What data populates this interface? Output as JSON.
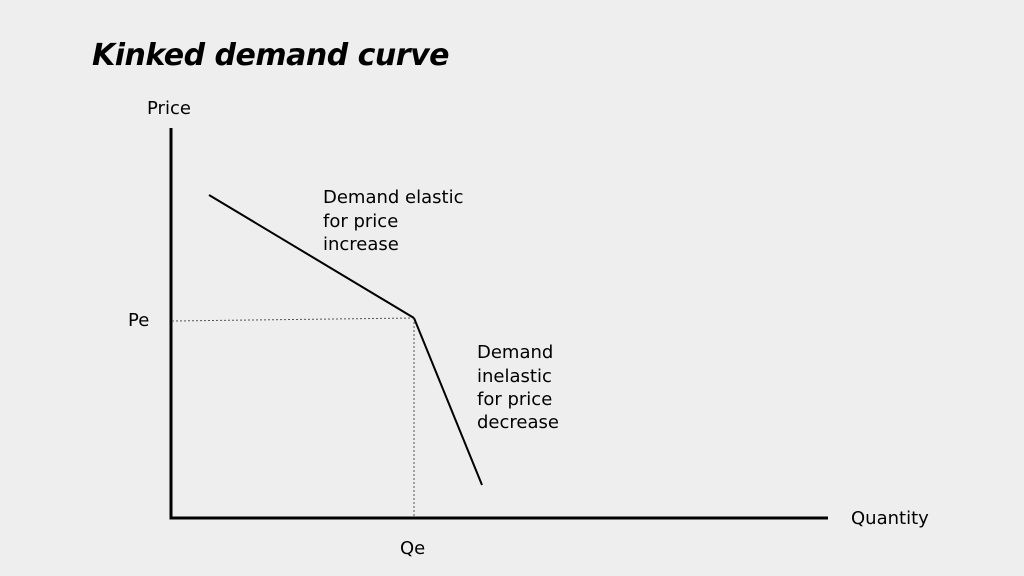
{
  "title": "Kinked demand curve",
  "axes": {
    "y_label": "Price",
    "x_label": "Quantity",
    "y_marker": "Pe",
    "x_marker": "Qe"
  },
  "annotations": {
    "elastic": [
      "Demand elastic",
      "for price",
      "increase"
    ],
    "inelastic": [
      "Demand",
      "inelastic",
      "for price",
      "decrease"
    ]
  },
  "colors": {
    "background": "#eeeeee",
    "lines": "#000000"
  }
}
